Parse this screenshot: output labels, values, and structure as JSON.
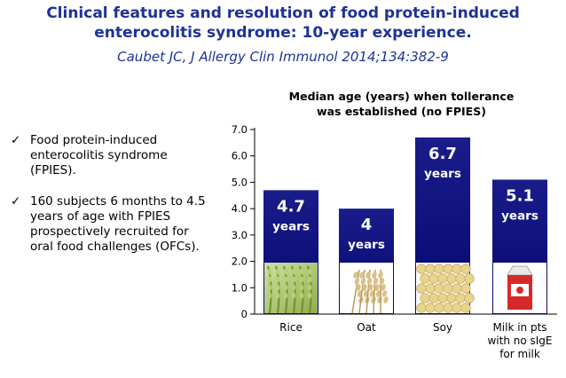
{
  "slide": {
    "title_line1": "Clinical features and resolution of food protein-induced",
    "title_line2": "enterocolitis syndrome: 10-year experience.",
    "citation": "Caubet JC,  J Allergy Clin Immunol 2014;134:382-9"
  },
  "bullets": [
    {
      "text": "Food protein-induced enterocolitis syndrome (FPIES)."
    },
    {
      "text": "160 subjects 6 months to 4.5 years of age with FPIES prospectively recruited for oral food challenges (OFCs)."
    }
  ],
  "icons": {
    "bullet": "checkmark-icon"
  },
  "chart_data": {
    "type": "bar",
    "title_line1": "Median age (years) when tollerance",
    "title_line2": "was established (no FPIES)",
    "categories": [
      {
        "lines": [
          "Rice"
        ]
      },
      {
        "lines": [
          "Oat"
        ]
      },
      {
        "lines": [
          "Soy"
        ]
      },
      {
        "lines": [
          "Milk in pts",
          "with no sIgE",
          "for milk"
        ]
      }
    ],
    "values": [
      4.7,
      4,
      6.7,
      5.1
    ],
    "value_labels": [
      "4.7",
      "4",
      "6.7",
      "5.1"
    ],
    "unit_label": "years",
    "yticks": [
      "0",
      "1.0",
      "2.0",
      "3.0",
      "4.0",
      "5.0",
      "6.0",
      "7.0"
    ],
    "ylim": [
      0,
      7
    ],
    "bar_color": "#1a1c8a",
    "bar_gradient_bottom": "#050770",
    "grid": false,
    "image_names": [
      "rice-plant-image",
      "oat-grain-image",
      "soybeans-image",
      "milk-carton-image"
    ]
  }
}
